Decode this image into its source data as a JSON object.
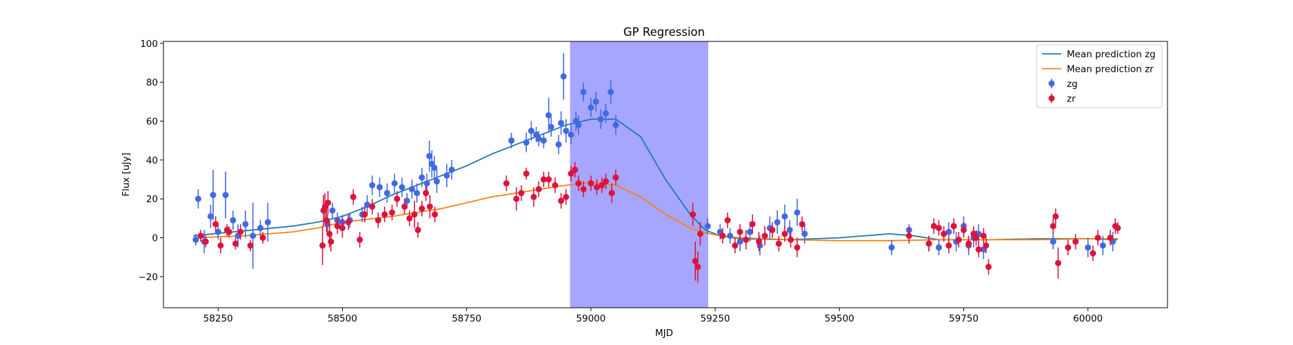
{
  "chart_data": {
    "type": "scatter",
    "title": "GP Regression",
    "xlabel": "MJD",
    "ylabel": "Flux [uJy]",
    "xlim": [
      58140,
      60160
    ],
    "ylim": [
      -36,
      101
    ],
    "xticks": [
      58250,
      58500,
      58750,
      59000,
      59250,
      59500,
      59750,
      60000
    ],
    "yticks": [
      -20,
      0,
      20,
      40,
      60,
      80,
      100
    ],
    "shaded_region": {
      "x0": 58958,
      "x1": 59236,
      "color": "#a6a6ff"
    },
    "legend": {
      "position": "top-right",
      "entries": [
        {
          "label": "Mean prediction zg",
          "kind": "line",
          "color": "#1f77b4"
        },
        {
          "label": "Mean prediction zr",
          "kind": "line",
          "color": "#ff7f0e"
        },
        {
          "label": "zg",
          "kind": "errorbar",
          "color": "#4169e1"
        },
        {
          "label": "zr",
          "kind": "errorbar",
          "color": "#dc143c"
        }
      ]
    },
    "series": [
      {
        "name": "Mean prediction zg",
        "kind": "line",
        "color": "#1f77b4",
        "x": [
          58200,
          58300,
          58400,
          58450,
          58500,
          58550,
          58600,
          58650,
          58700,
          58750,
          58800,
          58850,
          58900,
          58950,
          59000,
          59050,
          59100,
          59150,
          59200,
          59230,
          59260,
          59300,
          59400,
          59500,
          59600,
          59650,
          59700,
          59800,
          59900,
          60000,
          60060
        ],
        "y": [
          1,
          3.5,
          6,
          8,
          11,
          16,
          22,
          27,
          32,
          37,
          43,
          48,
          53,
          58,
          61,
          61,
          52,
          30,
          12,
          4,
          1,
          -0.5,
          -1,
          0,
          2,
          1,
          -1,
          -1,
          -0.5,
          -0.5,
          -1
        ]
      },
      {
        "name": "Mean prediction zr",
        "kind": "line",
        "color": "#ff7f0e",
        "x": [
          58200,
          58300,
          58400,
          58450,
          58500,
          58550,
          58600,
          58650,
          58700,
          58750,
          58800,
          58850,
          58900,
          58950,
          59000,
          59050,
          59100,
          59150,
          59200,
          59230,
          59260,
          59300,
          59400,
          59500,
          59600,
          59700,
          59800,
          59900,
          60000,
          60060
        ],
        "y": [
          0,
          1,
          3,
          5,
          8,
          9.5,
          11,
          13,
          15,
          18,
          21,
          23,
          25,
          27,
          28.5,
          27,
          21,
          12,
          5,
          2.5,
          1,
          0,
          -1,
          -1.5,
          -1.5,
          -1,
          -1,
          -1,
          -0.5,
          -0.5
        ]
      },
      {
        "name": "zg",
        "kind": "errorbar",
        "color": "#4169e1",
        "x": [
          58205,
          58210,
          58222,
          58235,
          58240,
          58250,
          58265,
          58280,
          58290,
          58305,
          58320,
          58335,
          58350,
          58470,
          58480,
          58490,
          58500,
          58515,
          58540,
          58550,
          58560,
          58575,
          58590,
          58605,
          58620,
          58630,
          58640,
          58650,
          58660,
          58670,
          58675,
          58680,
          58685,
          58690,
          58710,
          58720,
          58840,
          58870,
          58880,
          58890,
          58895,
          58905,
          58915,
          58920,
          58935,
          58940,
          58945,
          58950,
          58960,
          58970,
          58975,
          58985,
          59000,
          59010,
          59020,
          59030,
          59040,
          59050,
          59235,
          59260,
          59280,
          59300,
          59320,
          59340,
          59360,
          59375,
          59390,
          59400,
          59415,
          59430,
          59605,
          59640,
          59680,
          59700,
          59720,
          59735,
          59750,
          59760,
          59770,
          59780,
          59790,
          59930,
          60000,
          60030,
          60050
        ],
        "y": [
          -1,
          20,
          -2,
          11,
          22,
          3,
          22,
          9,
          1,
          7,
          1,
          5,
          8,
          7,
          14,
          9,
          8,
          9,
          12,
          17,
          27,
          26,
          23,
          28,
          26,
          19,
          25,
          23,
          31,
          28,
          42,
          38,
          36,
          29,
          32,
          35,
          50,
          49,
          55,
          53,
          51,
          50,
          63,
          57,
          48,
          59,
          83,
          55,
          53,
          60,
          58,
          75,
          67,
          70,
          61,
          64,
          75,
          58,
          6,
          3,
          1,
          -2,
          3,
          -4,
          5,
          8,
          11,
          4,
          13,
          2,
          -5,
          4,
          -3,
          -5,
          3,
          -2,
          6,
          -4,
          0,
          2,
          -6,
          -2,
          -5,
          -4,
          -2
        ],
        "err": [
          3,
          5,
          6,
          6,
          13,
          4,
          12,
          5,
          6,
          7,
          17,
          4,
          10,
          5,
          4,
          4,
          4,
          4,
          4,
          5,
          5,
          5,
          5,
          5,
          5,
          4,
          5,
          5,
          5,
          5,
          8,
          7,
          6,
          6,
          6,
          5,
          4,
          5,
          5,
          4,
          4,
          4,
          9,
          5,
          5,
          6,
          12,
          6,
          5,
          5,
          5,
          5,
          5,
          5,
          5,
          5,
          6,
          5,
          4,
          4,
          4,
          5,
          5,
          5,
          6,
          6,
          6,
          5,
          7,
          5,
          4,
          3,
          4,
          4,
          5,
          5,
          5,
          5,
          5,
          5,
          5,
          4,
          5,
          5,
          5
        ]
      },
      {
        "name": "zr",
        "kind": "errorbar",
        "color": "#dc143c",
        "x": [
          58215,
          58225,
          58245,
          58255,
          58268,
          58272,
          58285,
          58295,
          58315,
          58340,
          58460,
          58462,
          58465,
          58468,
          58471,
          58474,
          58477,
          58490,
          58500,
          58512,
          58522,
          58535,
          58545,
          58560,
          58572,
          58585,
          58600,
          58610,
          58625,
          58635,
          58645,
          58652,
          58660,
          58668,
          58676,
          58686,
          58830,
          58850,
          58860,
          58870,
          58885,
          58895,
          58905,
          58915,
          58928,
          58940,
          58950,
          58960,
          58968,
          58975,
          58985,
          59000,
          59012,
          59022,
          59030,
          59042,
          59050,
          59205,
          59210,
          59215,
          59220,
          59265,
          59275,
          59290,
          59300,
          59312,
          59325,
          59338,
          59350,
          59365,
          59378,
          59390,
          59402,
          59415,
          59425,
          59640,
          59680,
          59690,
          59700,
          59710,
          59720,
          59730,
          59740,
          59750,
          59760,
          59770,
          59775,
          59780,
          59790,
          59795,
          59800,
          59930,
          59935,
          59940,
          59960,
          59975,
          60010,
          60020,
          60045,
          60055,
          60060
        ],
        "y": [
          1,
          -2,
          7,
          -4,
          4,
          3,
          -3,
          3,
          -4,
          0,
          -4,
          14,
          16,
          9,
          18,
          2,
          -2,
          6,
          5,
          8,
          21,
          -1,
          12,
          16,
          9,
          12,
          13,
          20,
          16,
          10,
          12,
          4,
          15,
          23,
          16,
          12,
          28,
          20,
          23,
          33,
          21,
          25,
          30,
          30,
          27,
          19,
          21,
          33,
          35,
          28,
          25,
          28,
          26,
          27,
          29,
          23,
          31,
          12,
          -12,
          -15,
          2,
          1,
          9,
          -4,
          3,
          -1,
          7,
          -2,
          1,
          4,
          -3,
          2,
          -1,
          -5,
          7,
          1,
          -3,
          6,
          5,
          2,
          -4,
          6,
          -1,
          4,
          -3,
          2,
          0,
          -6,
          1,
          -4,
          -15,
          6,
          11,
          -13,
          -5,
          -2,
          -8,
          0,
          0,
          6,
          5
        ],
        "err": [
          3,
          3,
          4,
          4,
          3,
          3,
          3,
          4,
          3,
          3,
          10,
          8,
          7,
          6,
          6,
          7,
          5,
          4,
          5,
          4,
          4,
          4,
          4,
          4,
          4,
          4,
          4,
          4,
          4,
          4,
          7,
          4,
          4,
          4,
          6,
          4,
          4,
          6,
          4,
          3,
          5,
          4,
          4,
          4,
          4,
          4,
          4,
          4,
          4,
          4,
          4,
          4,
          4,
          4,
          4,
          5,
          4,
          6,
          10,
          8,
          6,
          4,
          4,
          4,
          4,
          5,
          5,
          5,
          5,
          4,
          4,
          4,
          4,
          5,
          4,
          4,
          4,
          4,
          4,
          4,
          4,
          4,
          4,
          4,
          4,
          4,
          4,
          4,
          4,
          4,
          4,
          4,
          4,
          8,
          4,
          4,
          4,
          4,
          4,
          4,
          3
        ]
      }
    ]
  }
}
